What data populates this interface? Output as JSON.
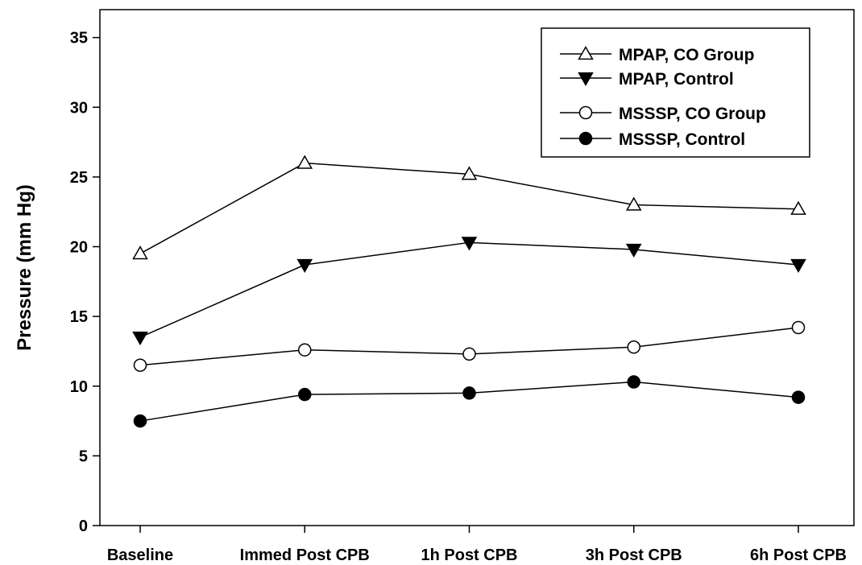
{
  "chart_data": {
    "type": "line",
    "title": "",
    "xlabel": "",
    "ylabel": "Pressure (mm Hg)",
    "categories": [
      "Baseline",
      "Immed Post CPB",
      "1h Post CPB",
      "3h Post CPB",
      "6h Post CPB"
    ],
    "ylim": [
      0,
      37
    ],
    "yticks": [
      0,
      5,
      10,
      15,
      20,
      25,
      30,
      35
    ],
    "grid": false,
    "legend_position": "top-right",
    "series": [
      {
        "name": "MPAP, CO Group",
        "marker": "triangle-up-open",
        "values": [
          19.5,
          26.0,
          25.2,
          23.0,
          22.7
        ]
      },
      {
        "name": "MPAP, Control",
        "marker": "triangle-down-filled",
        "values": [
          13.5,
          18.7,
          20.3,
          19.8,
          18.7
        ]
      },
      {
        "name": "MSSSP, CO Group",
        "marker": "circle-open",
        "values": [
          11.5,
          12.6,
          12.3,
          12.8,
          14.2
        ]
      },
      {
        "name": "MSSSP, Control",
        "marker": "circle-filled",
        "values": [
          7.5,
          9.4,
          9.5,
          10.3,
          9.2
        ]
      }
    ]
  }
}
